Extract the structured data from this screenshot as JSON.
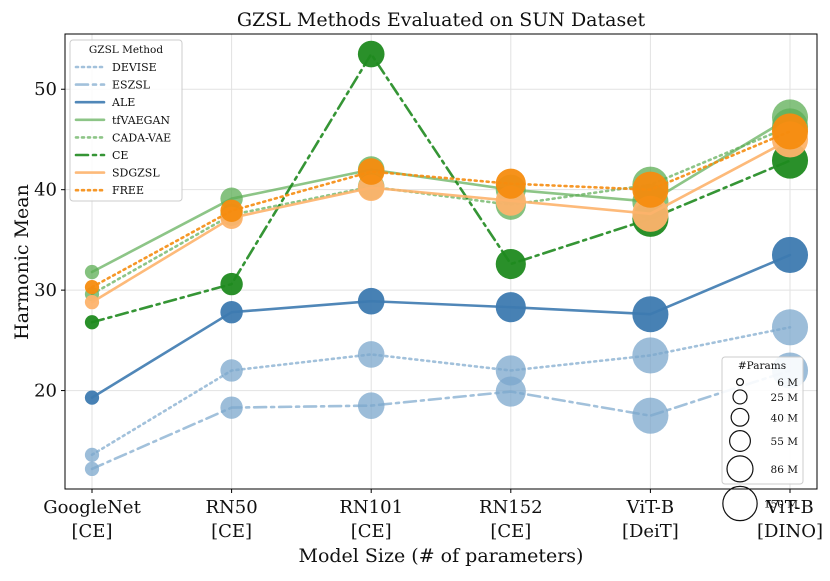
{
  "chart_data": {
    "type": "line",
    "title": "GZSL Methods Evaluated on SUN Dataset",
    "xlabel": "Model Size (# of parameters)",
    "ylabel": "Harmonic Mean",
    "ylim": [
      10.2,
      55.5
    ],
    "yticks": [
      20,
      30,
      40,
      50
    ],
    "grid": true,
    "categories": [
      {
        "line1": "GoogleNet",
        "line2": "[CE]"
      },
      {
        "line1": "RN50",
        "line2": "[CE]"
      },
      {
        "line1": "RN101",
        "line2": "[CE]"
      },
      {
        "line1": "RN152",
        "line2": "[CE]"
      },
      {
        "line1": "ViT-B",
        "line2": "[DeiT]"
      },
      {
        "line1": "ViT-B",
        "line2": "[DINO]"
      }
    ],
    "params_millions": [
      6,
      25,
      40,
      55,
      86,
      86
    ],
    "legend_title": "GZSL Method",
    "legend_position": "top-left",
    "series": [
      {
        "name": "DEVISE",
        "color": "#7ba7cc",
        "dash": "dotted",
        "alpha": 0.7,
        "values": [
          13.6,
          22.0,
          23.6,
          22.0,
          23.5,
          26.3
        ]
      },
      {
        "name": "ESZSL",
        "color": "#7ba7cc",
        "dash": "dashdot",
        "alpha": 0.7,
        "values": [
          12.2,
          18.3,
          18.5,
          19.9,
          17.5,
          22.0
        ]
      },
      {
        "name": "ALE",
        "color": "#3d7ab0",
        "dash": "solid",
        "alpha": 0.9,
        "values": [
          19.3,
          27.8,
          28.9,
          28.3,
          27.6,
          33.5
        ]
      },
      {
        "name": "tfVAEGAN",
        "color": "#5cad54",
        "dash": "solid",
        "alpha": 0.7,
        "values": [
          31.8,
          39.1,
          42.0,
          40.0,
          38.8,
          47.2
        ]
      },
      {
        "name": "CADA-VAE",
        "color": "#5cad54",
        "dash": "dotted",
        "alpha": 0.7,
        "values": [
          29.6,
          37.5,
          40.3,
          38.5,
          40.5,
          46.3
        ]
      },
      {
        "name": "CE",
        "color": "#1f8a1f",
        "dash": "dashdot",
        "alpha": 0.9,
        "values": [
          26.8,
          30.6,
          53.5,
          32.6,
          37.1,
          42.9
        ]
      },
      {
        "name": "SDGZSL",
        "color": "#fdb36b",
        "dash": "solid",
        "alpha": 0.9,
        "values": [
          28.8,
          37.2,
          40.2,
          38.9,
          37.6,
          45.0
        ]
      },
      {
        "name": "FREE",
        "color": "#f58c0f",
        "dash": "dotted",
        "alpha": 0.9,
        "values": [
          30.3,
          37.9,
          41.8,
          40.6,
          40.0,
          45.8
        ]
      }
    ],
    "size_legend": {
      "title": "#Params",
      "position": "bottom-right",
      "entries": [
        {
          "label": "6 M",
          "value": 6
        },
        {
          "label": "25 M",
          "value": 25
        },
        {
          "label": "40 M",
          "value": 40
        },
        {
          "label": "55 M",
          "value": 55
        },
        {
          "label": "86 M",
          "value": 86
        },
        {
          "label": "150 M",
          "value": 150
        }
      ]
    }
  }
}
